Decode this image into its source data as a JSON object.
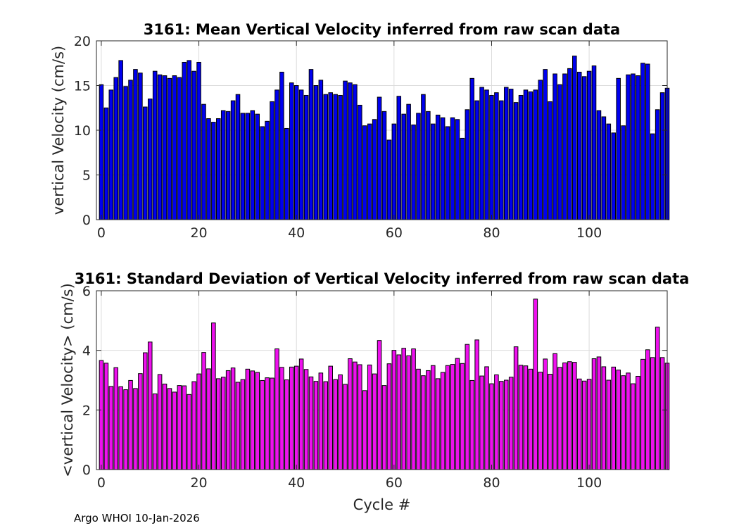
{
  "chart_data": [
    {
      "type": "bar",
      "title": "3161: Mean Vertical Velocity inferred from raw scan data",
      "xlabel": "",
      "ylabel": "vertical Velocity (cm/s)",
      "xlim": [
        -1,
        116
      ],
      "ylim": [
        0,
        20
      ],
      "xticks": [
        0,
        20,
        40,
        60,
        80,
        100
      ],
      "yticks": [
        0,
        5,
        10,
        15,
        20
      ],
      "grid": true,
      "color": "#0000ee",
      "x_start": 0,
      "values": [
        15.1,
        12.5,
        14.5,
        15.9,
        17.8,
        14.9,
        15.6,
        16.8,
        16.4,
        12.6,
        13.5,
        16.6,
        16.2,
        16.1,
        15.8,
        16.1,
        15.9,
        17.6,
        17.8,
        16.6,
        17.6,
        12.9,
        11.3,
        10.9,
        11.3,
        12.2,
        12.1,
        13.3,
        14.0,
        11.9,
        11.9,
        12.2,
        11.8,
        10.4,
        11.0,
        13.2,
        14.5,
        16.5,
        10.2,
        15.3,
        15.0,
        14.5,
        13.9,
        16.8,
        15.0,
        15.6,
        14.0,
        14.2,
        14.0,
        13.9,
        15.5,
        15.3,
        15.1,
        12.8,
        10.5,
        10.7,
        11.2,
        13.7,
        12.1,
        8.9,
        10.7,
        13.8,
        11.8,
        12.9,
        10.6,
        11.9,
        14.0,
        12.1,
        10.7,
        11.7,
        11.4,
        10.4,
        11.4,
        11.2,
        9.1,
        12.3,
        15.8,
        13.3,
        14.8,
        14.5,
        13.9,
        14.2,
        13.3,
        14.8,
        14.6,
        13.1,
        13.9,
        14.5,
        14.3,
        14.5,
        15.6,
        16.8,
        13.2,
        16.3,
        15.1,
        16.3,
        16.9,
        18.3,
        16.5,
        16.0,
        16.6,
        17.2,
        12.2,
        11.5,
        10.7,
        9.7,
        15.8,
        10.5,
        16.2,
        16.3,
        16.1,
        17.5,
        17.4,
        9.6,
        12.3,
        14.2,
        14.7
      ]
    },
    {
      "type": "bar",
      "title": "3161: Standard Deviation of Vertical Velocity inferred from raw scan data",
      "xlabel": "Cycle #",
      "ylabel": "<vertical Velocity> (cm/s)",
      "xlim": [
        -1,
        116
      ],
      "ylim": [
        0,
        6
      ],
      "xticks": [
        0,
        20,
        40,
        60,
        80,
        100
      ],
      "yticks": [
        0,
        2,
        4,
        6
      ],
      "grid": true,
      "color": "#ee11ee",
      "x_start": 0,
      "values": [
        3.66,
        3.57,
        2.79,
        3.42,
        2.78,
        2.68,
        2.99,
        2.72,
        3.22,
        3.92,
        4.28,
        2.54,
        3.19,
        2.87,
        2.72,
        2.6,
        2.82,
        2.81,
        2.52,
        2.95,
        3.21,
        3.93,
        3.38,
        4.92,
        3.05,
        3.1,
        3.32,
        3.41,
        2.93,
        3.02,
        3.37,
        3.31,
        3.26,
        2.99,
        3.08,
        3.07,
        4.05,
        3.43,
        3.01,
        3.44,
        3.47,
        3.71,
        3.36,
        3.11,
        2.96,
        3.24,
        2.95,
        3.47,
        3.02,
        3.18,
        2.86,
        3.72,
        3.61,
        3.52,
        2.65,
        3.51,
        3.21,
        4.33,
        2.82,
        3.55,
        4.0,
        3.85,
        4.07,
        3.82,
        4.05,
        3.37,
        3.15,
        3.32,
        3.49,
        3.05,
        3.26,
        3.49,
        3.53,
        3.73,
        3.56,
        4.2,
        2.99,
        4.35,
        3.14,
        3.45,
        2.88,
        3.18,
        2.96,
        3.0,
        3.1,
        4.12,
        3.5,
        3.48,
        3.37,
        5.72,
        3.27,
        3.71,
        3.2,
        3.89,
        3.43,
        3.58,
        3.62,
        3.6,
        3.04,
        2.97,
        3.03,
        3.72,
        3.78,
        3.45,
        3.0,
        3.44,
        3.34,
        3.15,
        3.24,
        2.88,
        3.13,
        3.7,
        4.02,
        3.76,
        4.78,
        3.76,
        3.57
      ]
    }
  ],
  "footer": "Argo WHOI 10-Jan-2026"
}
